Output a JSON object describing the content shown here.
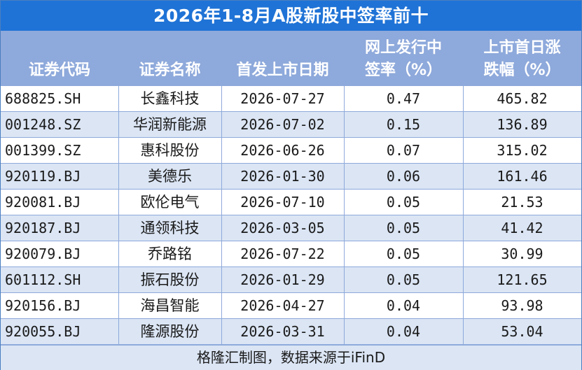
{
  "title": "2026年1-8月A股新股中签率前十",
  "headers": {
    "code": "证券代码",
    "name": "证券名称",
    "date": "首发上市日期",
    "rate_line1": "网上发行中",
    "rate_line2": "签率（%）",
    "gain_line1": "上市首日涨",
    "gain_line2": "跌幅（%）"
  },
  "rows": [
    {
      "code": "688825.SH",
      "name": "长鑫科技",
      "date": "2026-07-27",
      "rate": "0.47",
      "gain": "465.82"
    },
    {
      "code": "001248.SZ",
      "name": "华润新能源",
      "date": "2026-07-02",
      "rate": "0.15",
      "gain": "136.89"
    },
    {
      "code": "001399.SZ",
      "name": "惠科股份",
      "date": "2026-06-26",
      "rate": "0.07",
      "gain": "315.02"
    },
    {
      "code": "920119.BJ",
      "name": "美德乐",
      "date": "2026-01-30",
      "rate": "0.06",
      "gain": "161.46"
    },
    {
      "code": "920081.BJ",
      "name": "欧伦电气",
      "date": "2026-07-10",
      "rate": "0.05",
      "gain": "21.53"
    },
    {
      "code": "920187.BJ",
      "name": "通领科技",
      "date": "2026-03-05",
      "rate": "0.05",
      "gain": "41.42"
    },
    {
      "code": "920079.BJ",
      "name": "乔路铭",
      "date": "2026-07-22",
      "rate": "0.05",
      "gain": "30.99"
    },
    {
      "code": "601112.SH",
      "name": "振石股份",
      "date": "2026-01-29",
      "rate": "0.05",
      "gain": "121.65"
    },
    {
      "code": "920156.BJ",
      "name": "海昌智能",
      "date": "2026-04-27",
      "rate": "0.04",
      "gain": "93.98"
    },
    {
      "code": "920055.BJ",
      "name": "隆源股份",
      "date": "2026-03-31",
      "rate": "0.04",
      "gain": "53.04"
    }
  ],
  "footer": "格隆汇制图，数据来源于iFinD"
}
